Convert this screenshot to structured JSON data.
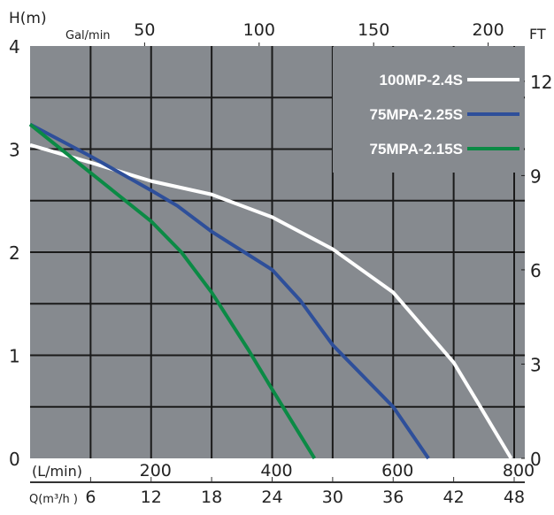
{
  "chart_data": {
    "type": "line",
    "ylabel": "H(m)",
    "ylabel_right": "FT",
    "xlabel_top": "Gal/min",
    "xlabel_lmin": "(L/min)",
    "xlabel_bottom": "Q(m³/h )",
    "xlim": [
      0,
      49
    ],
    "ylim": [
      0,
      4
    ],
    "grid": true,
    "legend_position": "top-right",
    "colors": {
      "background": "#868a8f",
      "grid": "#1a1a1a"
    },
    "y_ticks": [
      "0",
      "1",
      "2",
      "3",
      "4"
    ],
    "ft_ticks": [
      "0",
      "3",
      "6",
      "9",
      "12"
    ],
    "gal_ticks": [
      "50",
      "100",
      "150",
      "200"
    ],
    "lmin_ticks": [
      "200",
      "400",
      "600",
      "800"
    ],
    "q_ticks": [
      "6",
      "12",
      "18",
      "24",
      "30",
      "36",
      "42",
      "48"
    ],
    "series": [
      {
        "name": "100MP-2.4S",
        "color": "#ffffff",
        "points": [
          [
            0,
            3.04
          ],
          [
            6,
            2.87
          ],
          [
            12,
            2.69
          ],
          [
            18,
            2.56
          ],
          [
            24,
            2.34
          ],
          [
            30,
            2.03
          ],
          [
            36,
            1.61
          ],
          [
            42,
            0.93
          ],
          [
            44.4,
            0.54
          ],
          [
            47.7,
            0
          ]
        ]
      },
      {
        "name": "75MPA-2.25S",
        "color": "#2e4f9a",
        "points": [
          [
            0,
            3.24
          ],
          [
            6,
            2.93
          ],
          [
            12,
            2.6
          ],
          [
            14.6,
            2.45
          ],
          [
            18,
            2.2
          ],
          [
            24,
            1.83
          ],
          [
            26.8,
            1.53
          ],
          [
            30,
            1.1
          ],
          [
            36,
            0.5
          ],
          [
            39.5,
            0
          ]
        ]
      },
      {
        "name": "75MPA-2.15S",
        "color": "#0b8a45",
        "points": [
          [
            0,
            3.24
          ],
          [
            6,
            2.77
          ],
          [
            12,
            2.3
          ],
          [
            15,
            2.0
          ],
          [
            18,
            1.61
          ],
          [
            21.6,
            1.06
          ],
          [
            24,
            0.67
          ],
          [
            28.2,
            0
          ]
        ]
      }
    ]
  }
}
